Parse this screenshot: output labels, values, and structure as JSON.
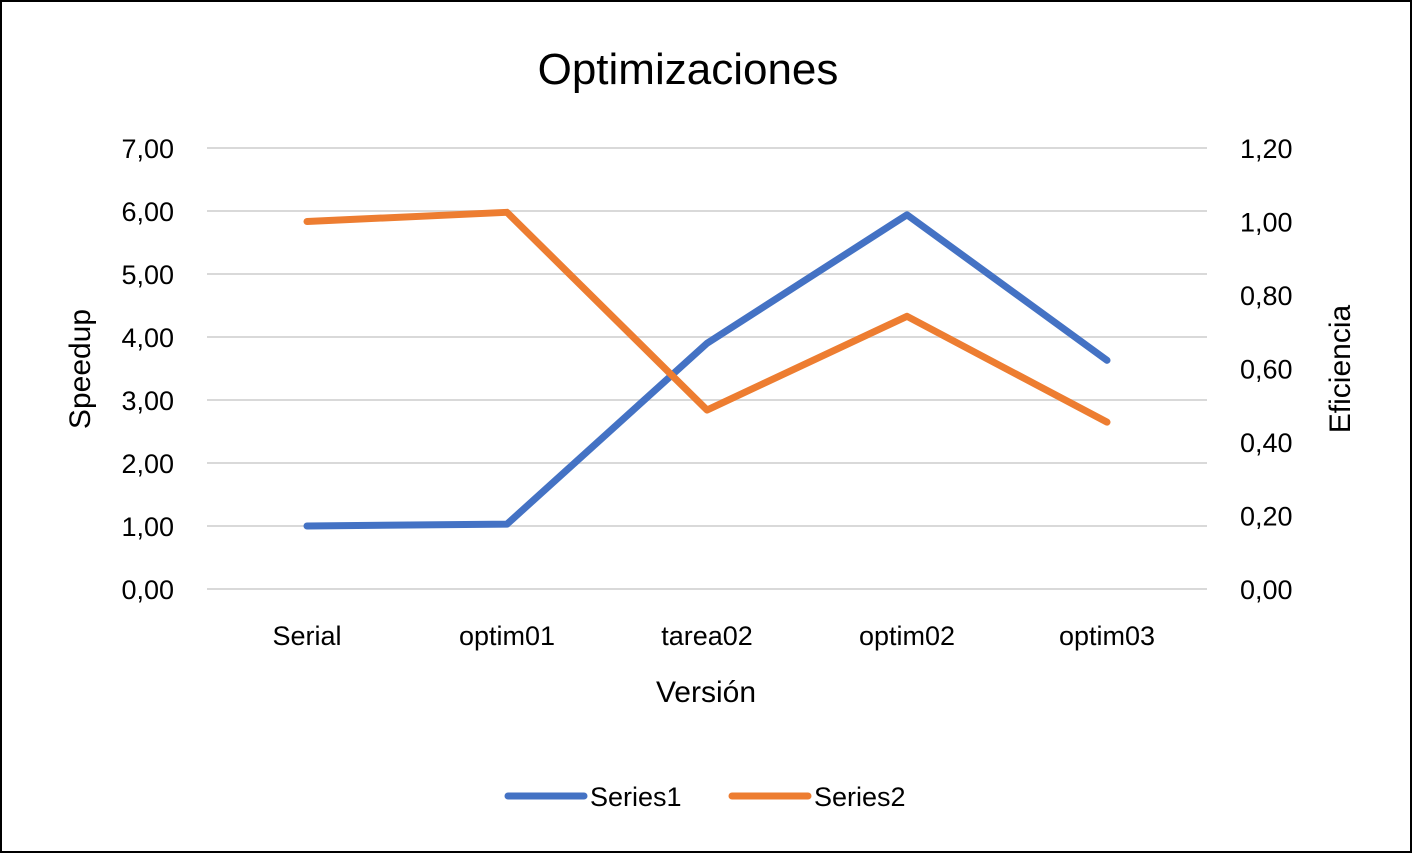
{
  "chart_data": {
    "type": "line",
    "title": "Optimizaciones",
    "xlabel": "Versión",
    "ylabel": "Speedup",
    "y2label": "Eficiencia",
    "categories": [
      "Serial",
      "optim01",
      "tarea02",
      "optim02",
      "optim03"
    ],
    "ylim": [
      0,
      7
    ],
    "y2lim": [
      0,
      1.2
    ],
    "y_ticks": [
      "0,00",
      "1,00",
      "2,00",
      "3,00",
      "4,00",
      "5,00",
      "6,00",
      "7,00"
    ],
    "y2_ticks": [
      "0,00",
      "0,20",
      "0,40",
      "0,60",
      "0,80",
      "1,00",
      "1,20"
    ],
    "grid": true,
    "legend_position": "bottom",
    "series": [
      {
        "name": "Series1",
        "axis": "left",
        "color": "#4472C4",
        "values": [
          1.0,
          1.03,
          3.9,
          5.94,
          3.63
        ]
      },
      {
        "name": "Series2",
        "axis": "right",
        "color": "#ED7D31",
        "values": [
          1.0,
          1.025,
          0.487,
          0.742,
          0.454
        ]
      }
    ]
  }
}
